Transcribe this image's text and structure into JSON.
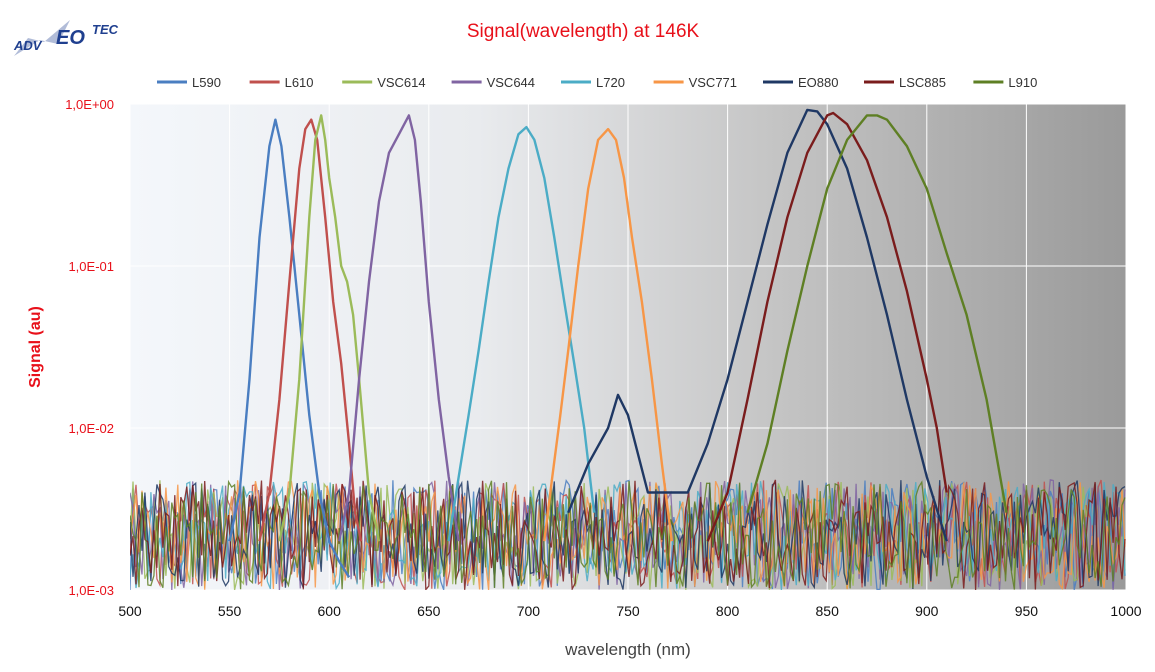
{
  "logo": {
    "text_left": "ADV",
    "text_mid": "EO",
    "text_right": "TEC"
  },
  "chart_data": {
    "type": "line",
    "title": "Signal(wavelength) at 146K",
    "xlabel": "wavelength (nm)",
    "ylabel": "Signal (au)",
    "xlim": [
      500,
      1000
    ],
    "ylim": [
      0.001,
      1
    ],
    "yscale": "log",
    "xticks": [
      "500",
      "550",
      "600",
      "650",
      "700",
      "750",
      "800",
      "850",
      "900",
      "950",
      "1000"
    ],
    "yticks": [
      "1,0E+00",
      "1,0E-01",
      "1,0E-02",
      "1,0E-03"
    ],
    "grid": true,
    "legend_position": "top",
    "series": [
      {
        "name": "L590",
        "color": "#4a7ec1",
        "x": [
          550,
          555,
          560,
          565,
          570,
          573,
          576,
          580,
          585,
          590,
          595,
          600,
          605,
          610
        ],
        "y": [
          0.002,
          0.004,
          0.02,
          0.15,
          0.55,
          0.8,
          0.55,
          0.2,
          0.05,
          0.012,
          0.004,
          0.002,
          0.0015,
          0.0012
        ]
      },
      {
        "name": "L610",
        "color": "#c0504d",
        "x": [
          565,
          570,
          575,
          580,
          585,
          588,
          591,
          594,
          598,
          602,
          606,
          610,
          613,
          616
        ],
        "y": [
          0.002,
          0.004,
          0.015,
          0.08,
          0.4,
          0.7,
          0.8,
          0.6,
          0.2,
          0.06,
          0.025,
          0.008,
          0.003,
          0.002
        ]
      },
      {
        "name": "VSC614",
        "color": "#9bbb59",
        "x": [
          575,
          580,
          585,
          590,
          593,
          596,
          598,
          600,
          603,
          606,
          609,
          612,
          615,
          620,
          625
        ],
        "y": [
          0.002,
          0.004,
          0.02,
          0.2,
          0.6,
          0.85,
          0.6,
          0.35,
          0.2,
          0.1,
          0.08,
          0.05,
          0.02,
          0.004,
          0.002
        ]
      },
      {
        "name": "VSC644",
        "color": "#8064a2",
        "x": [
          605,
          610,
          615,
          620,
          625,
          630,
          635,
          640,
          643,
          646,
          650,
          655,
          660,
          665
        ],
        "y": [
          0.002,
          0.004,
          0.02,
          0.08,
          0.25,
          0.5,
          0.65,
          0.85,
          0.6,
          0.25,
          0.06,
          0.015,
          0.005,
          0.002
        ]
      },
      {
        "name": "L720",
        "color": "#4bacc6",
        "x": [
          660,
          665,
          670,
          675,
          680,
          685,
          690,
          695,
          699,
          703,
          708,
          713,
          718,
          723,
          728,
          733
        ],
        "y": [
          0.002,
          0.005,
          0.012,
          0.03,
          0.08,
          0.2,
          0.4,
          0.65,
          0.72,
          0.6,
          0.35,
          0.15,
          0.06,
          0.025,
          0.01,
          0.003
        ]
      },
      {
        "name": "VSC771",
        "color": "#f79646",
        "x": [
          708,
          712,
          716,
          720,
          725,
          730,
          735,
          740,
          744,
          748,
          752,
          757,
          762,
          767,
          772
        ],
        "y": [
          0.002,
          0.005,
          0.012,
          0.03,
          0.1,
          0.3,
          0.6,
          0.7,
          0.6,
          0.35,
          0.15,
          0.06,
          0.02,
          0.006,
          0.002
        ]
      },
      {
        "name": "EO880",
        "color": "#1f3864",
        "x": [
          720,
          730,
          740,
          745,
          750,
          760,
          780,
          790,
          800,
          810,
          820,
          830,
          840,
          845,
          850,
          860,
          870,
          880,
          890,
          900,
          910
        ],
        "y": [
          0.003,
          0.006,
          0.01,
          0.016,
          0.012,
          0.004,
          0.004,
          0.008,
          0.02,
          0.06,
          0.18,
          0.5,
          0.92,
          0.9,
          0.75,
          0.4,
          0.15,
          0.05,
          0.015,
          0.005,
          0.002
        ]
      },
      {
        "name": "LSC885",
        "color": "#7a1c1c",
        "x": [
          790,
          800,
          810,
          820,
          830,
          840,
          850,
          853,
          860,
          870,
          880,
          890,
          900,
          905,
          910
        ],
        "y": [
          0.002,
          0.004,
          0.015,
          0.06,
          0.2,
          0.5,
          0.85,
          0.88,
          0.75,
          0.45,
          0.2,
          0.07,
          0.02,
          0.01,
          0.004
        ]
      },
      {
        "name": "L910",
        "color": "#5e7f24",
        "x": [
          810,
          820,
          830,
          840,
          850,
          860,
          870,
          875,
          880,
          890,
          900,
          910,
          920,
          930,
          940
        ],
        "y": [
          0.003,
          0.008,
          0.03,
          0.1,
          0.3,
          0.6,
          0.85,
          0.85,
          0.8,
          0.55,
          0.3,
          0.12,
          0.05,
          0.015,
          0.003
        ]
      }
    ]
  }
}
